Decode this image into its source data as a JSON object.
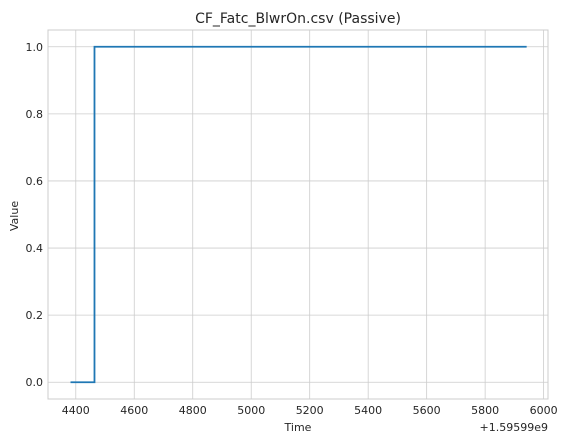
{
  "chart_data": {
    "type": "line",
    "title": "CF_Fatc_BlwrOn.csv (Passive)",
    "xlabel": "Time",
    "ylabel": "Value",
    "x_offset_label": "+1.59599e9",
    "xlim": [
      4305,
      6015
    ],
    "ylim": [
      -0.05,
      1.05
    ],
    "xticks": [
      4400,
      4600,
      4800,
      5000,
      5200,
      5400,
      5600,
      5800,
      6000
    ],
    "yticks": [
      0.0,
      0.2,
      0.4,
      0.6,
      0.8,
      1.0
    ],
    "xtick_labels": [
      "4400",
      "4600",
      "4800",
      "5000",
      "5200",
      "5400",
      "5600",
      "5800",
      "6000"
    ],
    "ytick_labels": [
      "0.0",
      "0.2",
      "0.4",
      "0.6",
      "0.8",
      "1.0"
    ],
    "grid": true,
    "series": [
      {
        "color": "#1f77b4",
        "x": [
          4382,
          4464,
          4464,
          5942
        ],
        "y": [
          0,
          0,
          1,
          1
        ]
      }
    ]
  }
}
